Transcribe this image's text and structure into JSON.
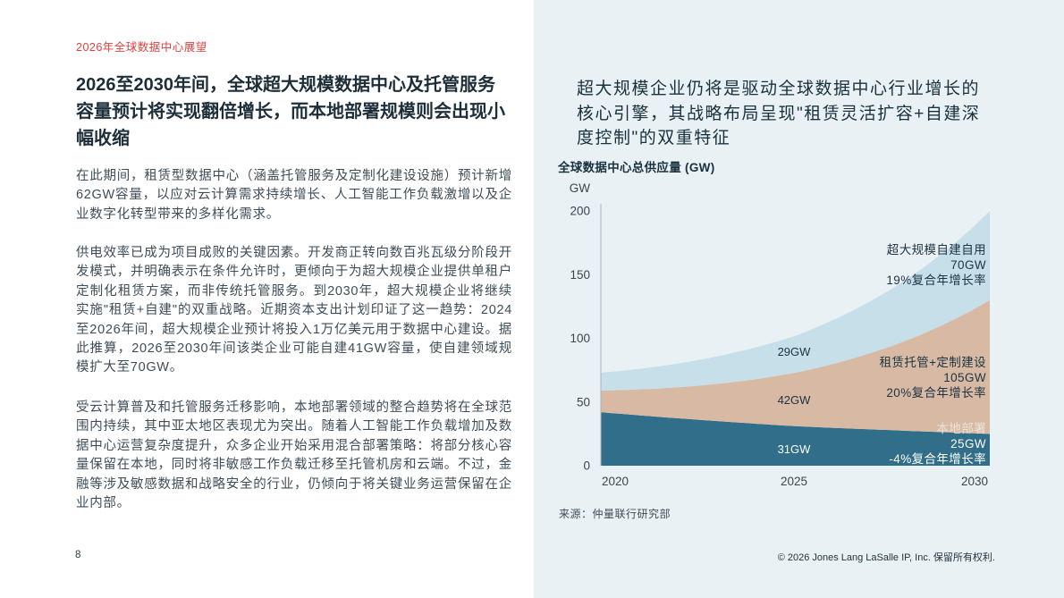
{
  "page": {
    "eyebrow": "2026年全球数据中心展望",
    "headline": "2026至2030年间，全球超大规模数据中心及托管服务容量预计将实现翻倍增长，而本地部署规模则会出现小幅收缩",
    "paragraphs": [
      "在此期间，租赁型数据中心（涵盖托管服务及定制化建设设施）预计新增62GW容量，以应对云计算需求持续增长、人工智能工作负载激增以及企业数字化转型带来的多样化需求。",
      "供电效率已成为项目成败的关键因素。开发商正转向数百兆瓦级分阶段开发模式，并明确表示在条件允许时，更倾向于为超大规模企业提供单租户定制化租赁方案，而非传统托管服务。到2030年，超大规模企业将继续实施\"租赁+自建\"的双重战略。近期资本支出计划印证了这一趋势：2024至2026年间，超大规模企业预计将投入1万亿美元用于数据中心建设。据此推算，2026至2030年间该类企业可能自建41GW容量，使自建领域规模扩大至70GW。",
      "受云计算普及和托管服务迁移影响，本地部署领域的整合趋势将在全球范围内持续，其中亚太地区表现尤为突出。随着人工智能工作负载增加及数据中心运营复杂度提升，众多企业开始采用混合部署策略：将部分核心容量保留在本地，同时将非敏感工作负载迁移至托管机房和云端。不过，金融等涉及敏感数据和战略安全的行业，仍倾向于将关键业务运营保留在企业内部。"
    ],
    "page_number": "8",
    "footer_copyright": "© 2026 Jones Lang LaSalle IP, Inc. 保留所有权利."
  },
  "right_panel": {
    "heading": "超大规模企业仍将是驱动全球数据中心行业增长的核心引擎，其战略布局呈现\"租赁灵活扩容+自建深度控制\"的双重特征",
    "source": "来源：仲量联行研究部"
  },
  "colors": {
    "accent_red": "#e0403d",
    "heading_navy": "#1e2e39",
    "body_text": "#3e4d59",
    "panel_background": "#eaf1f4",
    "series_on_premise": "#316e89",
    "series_colocation": "#d7b9a4",
    "series_self_build": "#c6dfe9"
  },
  "chart_data": {
    "type": "area",
    "stacked": true,
    "title": "全球数据中心总供应量 (GW)",
    "axis_unit": "GW",
    "x": [
      2020,
      2025,
      2030
    ],
    "xticklabels": [
      "2020",
      "2025",
      "2030"
    ],
    "yticks": [
      0,
      50,
      100,
      150,
      200
    ],
    "ylim": [
      0,
      200
    ],
    "grid": false,
    "legend_position": "inline-annotations",
    "series": [
      {
        "name": "本地部署",
        "color": "#316e89",
        "values": [
          42,
          31,
          25
        ],
        "value_label_2025": "31GW",
        "annotation_lines": [
          "本地部署",
          "25GW",
          "-4%复合年增长率"
        ]
      },
      {
        "name": "租赁托管+定制建设",
        "color": "#d7b9a4",
        "values": [
          17,
          42,
          105
        ],
        "value_label_2025": "42GW",
        "annotation_lines": [
          "租赁托管+定制建设",
          "105GW",
          "20%复合年增长率"
        ]
      },
      {
        "name": "超大规模自建自用",
        "color": "#c6dfe9",
        "values": [
          14,
          29,
          70
        ],
        "value_label_2025": "29GW",
        "annotation_lines": [
          "超大规模自建自用",
          "70GW",
          "19%复合年增长率"
        ]
      }
    ]
  }
}
